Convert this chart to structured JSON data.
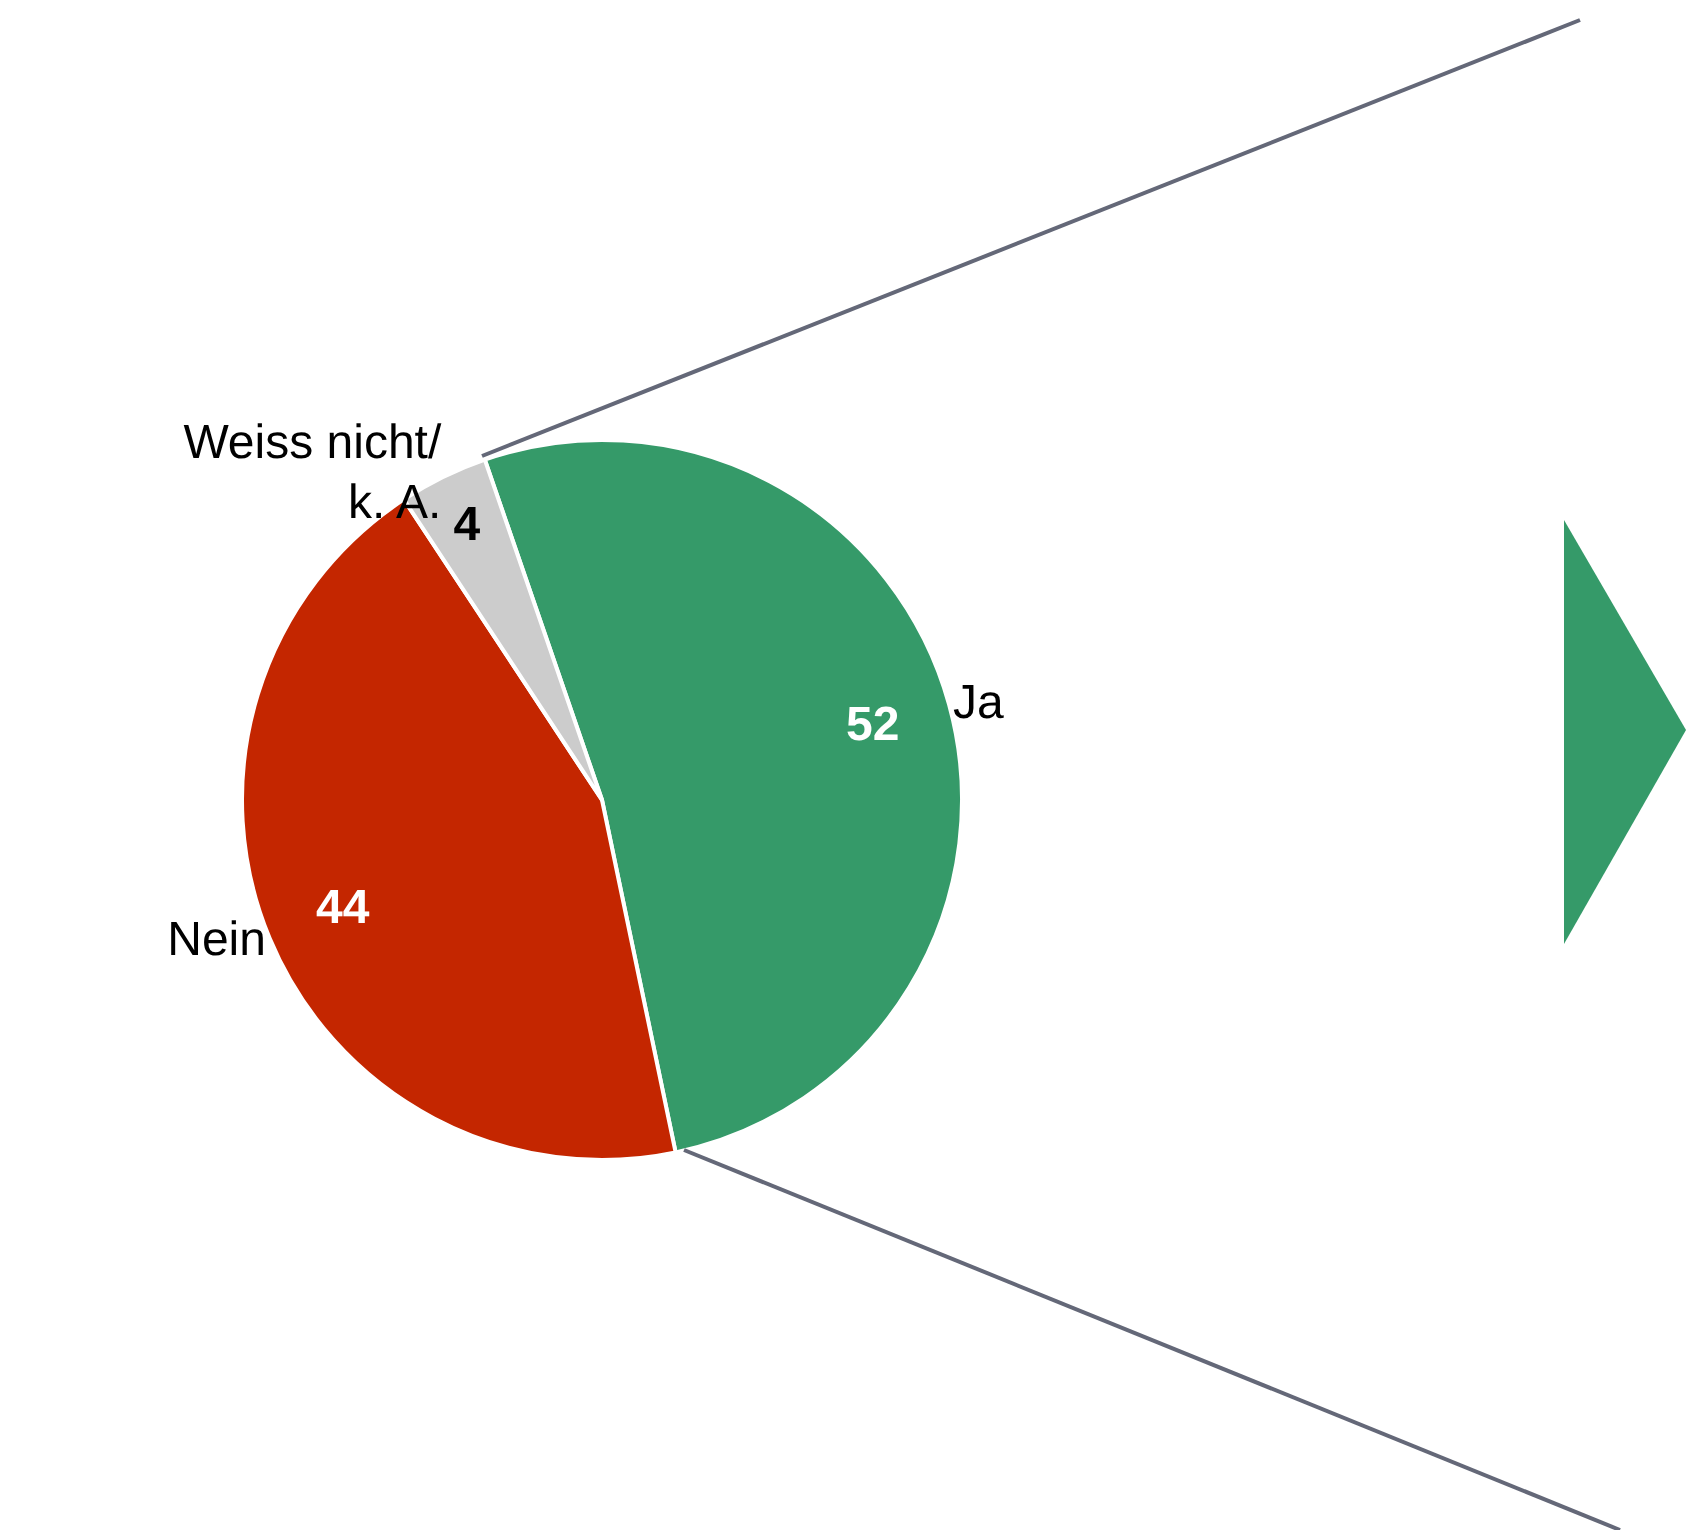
{
  "chart_data": {
    "type": "pie",
    "categories": [
      "Ja",
      "Nein",
      "Weiss nicht/\nk. A."
    ],
    "values": [
      52,
      44,
      4
    ],
    "colors": [
      "#359a69",
      "#c42600",
      "#cccccc"
    ],
    "data_labels": true
  }
}
